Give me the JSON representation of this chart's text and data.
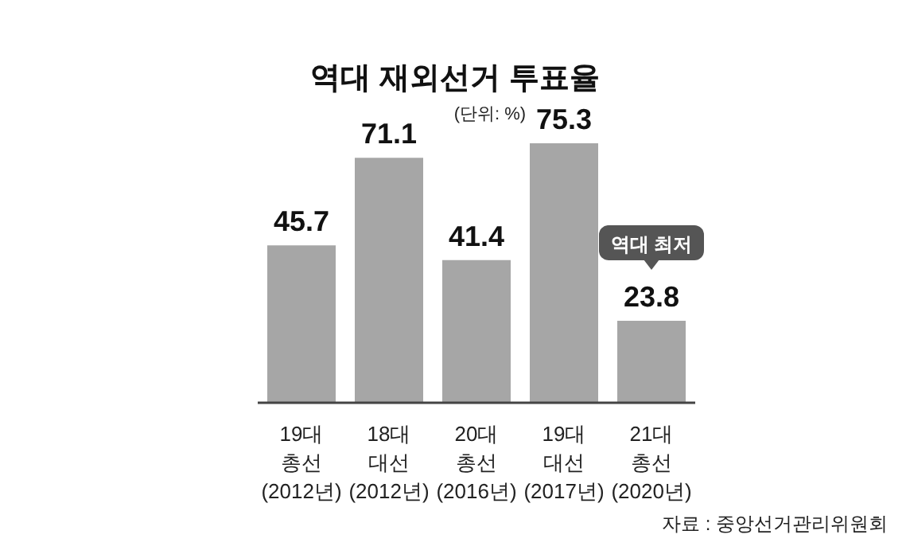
{
  "chart_data": {
    "type": "bar",
    "title": "역대 재외선거 투표율",
    "subtitle": "(단위: %)",
    "categories": [
      "19대\n총선\n(2012년)",
      "18대\n대선\n(2012년)",
      "20대\n총선\n(2016년)",
      "19대\n대선\n(2017년)",
      "21대\n총선\n(2020년)"
    ],
    "values": [
      45.7,
      71.1,
      41.4,
      75.3,
      23.8
    ],
    "color": "#a6a6a6",
    "data_labels": true,
    "annotations": [
      "역대 최저",
      "자료 : 중앙선거관리위원회"
    ]
  }
}
